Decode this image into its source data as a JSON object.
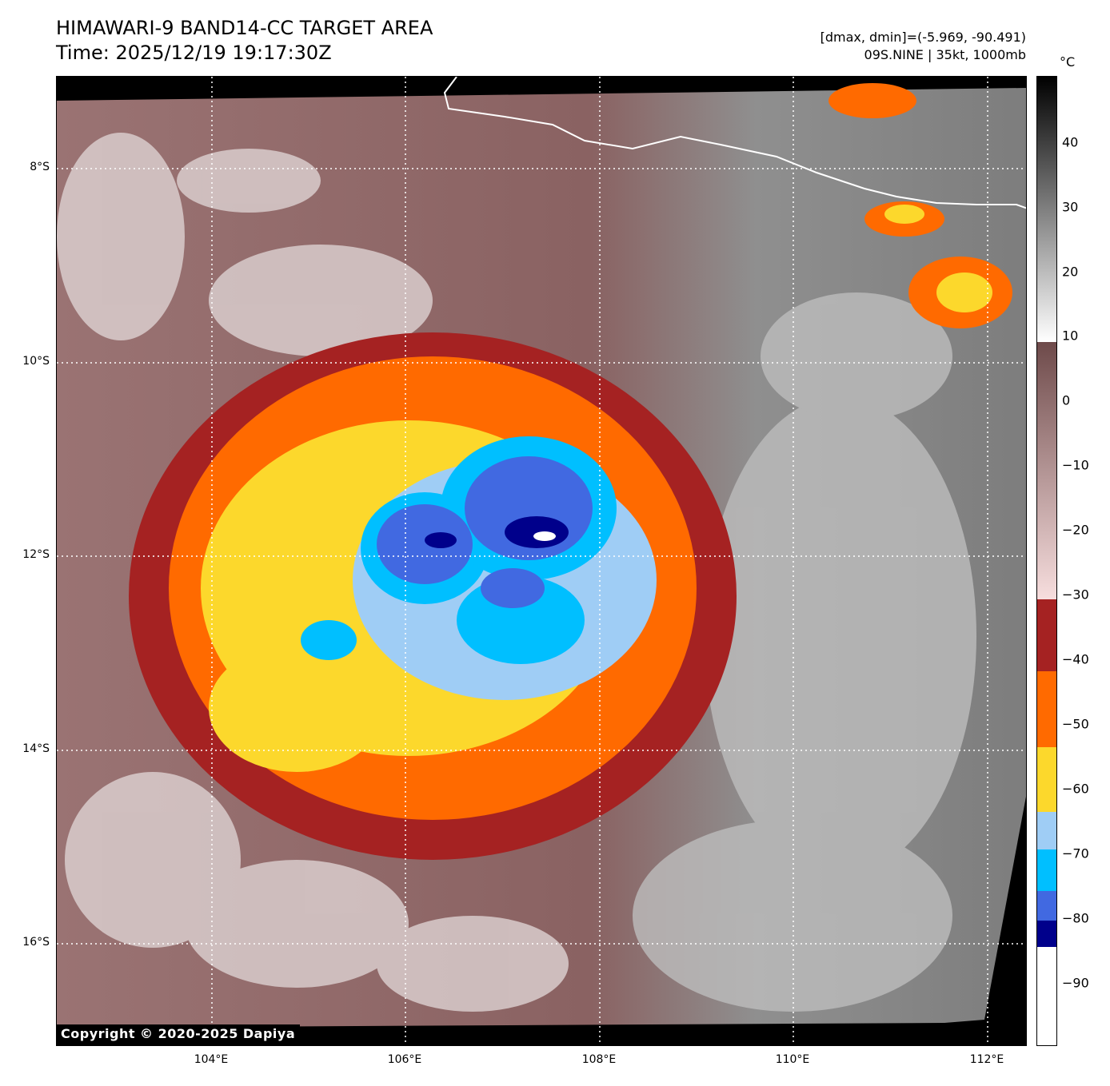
{
  "title": {
    "line1": "HIMAWARI-9 BAND14-CC TARGET AREA",
    "line2": "Time: 2025/12/19 19:17:30Z"
  },
  "meta": {
    "line1": "[dmax, dmin]=(-5.969, -90.491)",
    "line2": "09S.NINE | 35kt, 1000mb"
  },
  "map": {
    "lat_labels": [
      "8°S",
      "10°S",
      "12°S",
      "14°S",
      "16°S"
    ],
    "lon_labels": [
      "104°E",
      "106°E",
      "108°E",
      "110°E",
      "112°E"
    ],
    "copyright": "Copyright © 2020-2025 Dapiya"
  },
  "colorbar": {
    "unit": "°C",
    "ticks": [
      "40",
      "30",
      "20",
      "10",
      "0",
      "−10",
      "−20",
      "−30",
      "−40",
      "−50",
      "−60",
      "−70",
      "−80",
      "−90"
    ],
    "colors": {
      "dark_red": "#a52222",
      "orange": "#ff6a00",
      "yellow": "#fcd82c",
      "light_blue": "#9fcdf5",
      "cyan": "#00bfff",
      "royal_blue": "#4169e1",
      "navy": "#00008b",
      "pink": "#f2d2d2",
      "mauve": "#8a5e5e",
      "gray": "#8c8c8c"
    }
  }
}
